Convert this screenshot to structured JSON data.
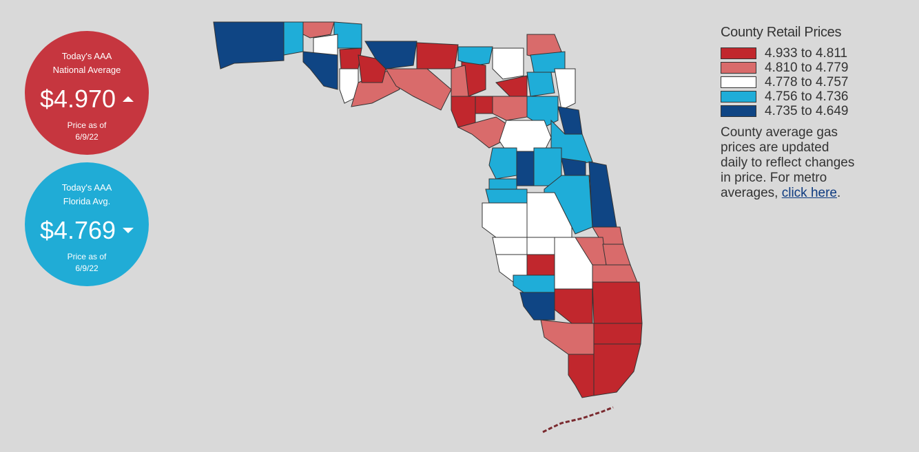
{
  "national": {
    "label_line1": "Today's AAA",
    "label_line2": "National Average",
    "price": "$4.970",
    "trend": "up",
    "asof_line1": "Price as of",
    "asof_line2": "6/9/22",
    "color": "#c6363f"
  },
  "florida": {
    "label_line1": "Today's AAA",
    "label_line2": "Florida Avg.",
    "price": "$4.769",
    "trend": "down",
    "asof_line1": "Price as of",
    "asof_line2": "6/9/22",
    "color": "#20acd6"
  },
  "legend": {
    "title": "County Retail Prices",
    "items": [
      {
        "label": "4.933 to 4.811",
        "color": "#c1272d"
      },
      {
        "label": "4.810 to 4.779",
        "color": "#d96b6b"
      },
      {
        "label": "4.778 to 4.757",
        "color": "#ffffff"
      },
      {
        "label": "4.756 to 4.736",
        "color": "#1fadd8"
      },
      {
        "label": "4.735 to 4.649",
        "color": "#0f4584"
      }
    ],
    "description": "County average gas prices are updated daily to reflect changes in price. For metro averages, ",
    "link_text": "click here",
    "trailing": "."
  },
  "map": {
    "county_tiers": [
      4,
      3,
      1,
      3,
      2,
      4,
      2,
      0,
      1,
      4,
      0,
      0,
      1,
      3,
      0,
      1,
      0,
      0,
      2,
      0,
      1,
      1,
      1,
      3,
      3,
      2,
      3,
      4,
      2,
      3,
      3,
      4,
      3,
      4,
      3,
      3,
      4,
      3,
      2,
      2,
      2,
      2,
      2,
      1,
      1,
      1,
      0,
      2,
      3,
      4,
      0,
      1,
      0,
      1,
      0,
      0,
      0
    ]
  }
}
